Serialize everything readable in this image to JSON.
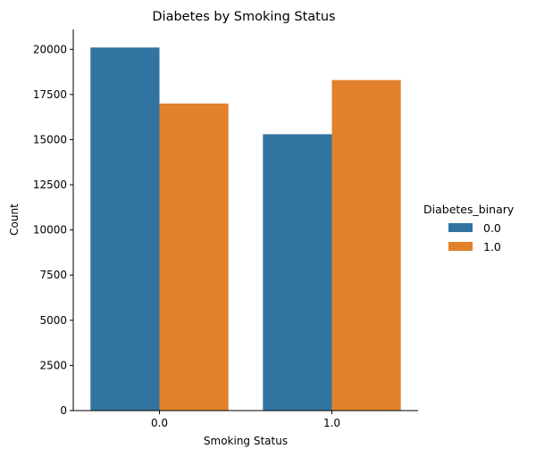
{
  "chart_data": {
    "type": "bar",
    "title": "Diabetes by Smoking Status",
    "xlabel": "Smoking Status",
    "ylabel": "Count",
    "categories": [
      "0.0",
      "1.0"
    ],
    "series": [
      {
        "name": "0.0",
        "values": [
          20100,
          15300
        ],
        "color": "#3274a1"
      },
      {
        "name": "1.0",
        "values": [
          17000,
          18300
        ],
        "color": "#e1812c"
      }
    ],
    "ylim": [
      0,
      21100
    ],
    "yticks": [
      0,
      2500,
      5000,
      7500,
      10000,
      12500,
      15000,
      17500,
      20000
    ],
    "grid": false,
    "legend": {
      "title": "Diabetes_binary",
      "placement": "right"
    }
  }
}
